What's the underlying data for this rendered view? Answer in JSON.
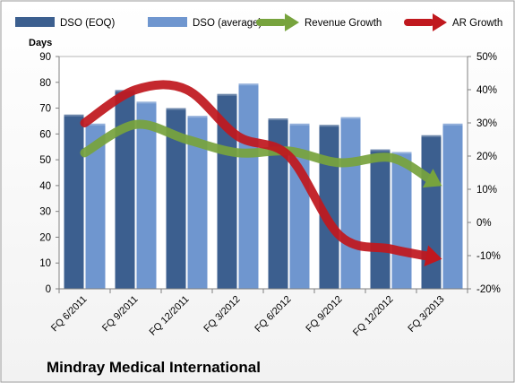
{
  "chart_data": {
    "type": "bar",
    "title": "Mindray Medical International",
    "ylabel": "Days",
    "categories": [
      "FQ 6/2011",
      "FQ 9/2011",
      "FQ 12/2011",
      "FQ 3/2012",
      "FQ 6/2012",
      "FQ 9/2012",
      "FQ 12/2012",
      "FQ 3/2013"
    ],
    "y_left": {
      "min": 0,
      "max": 90,
      "ticks": [
        "0",
        "10",
        "20",
        "30",
        "40",
        "50",
        "60",
        "70",
        "80",
        "90"
      ]
    },
    "y_right": {
      "min": -20,
      "max": 50,
      "ticks": [
        "-20%",
        "-10%",
        "0%",
        "10%",
        "20%",
        "30%",
        "40%",
        "50%"
      ]
    },
    "grid": false,
    "legend_position": "top",
    "series": [
      {
        "name": "DSO (EOQ)",
        "type": "bar",
        "axis": "left",
        "color": "#3c5f8f",
        "values": [
          67.5,
          77,
          70,
          75.5,
          66,
          63.5,
          54,
          59.5
        ]
      },
      {
        "name": "DSO (average)",
        "type": "bar",
        "axis": "left",
        "color": "#6f96cf",
        "values": [
          64,
          72.5,
          67,
          79.5,
          64,
          66.5,
          53,
          64
        ]
      },
      {
        "name": "Revenue Growth",
        "type": "arrow-line",
        "axis": "right",
        "color": "#77a33d",
        "values": [
          21,
          29.5,
          25,
          21,
          21.5,
          18,
          19.5,
          11
        ]
      },
      {
        "name": "AR Growth",
        "type": "arrow-line",
        "axis": "right",
        "color": "#c0181e",
        "values": [
          30,
          40,
          40,
          26,
          20,
          -4,
          -8,
          -11
        ]
      }
    ]
  }
}
